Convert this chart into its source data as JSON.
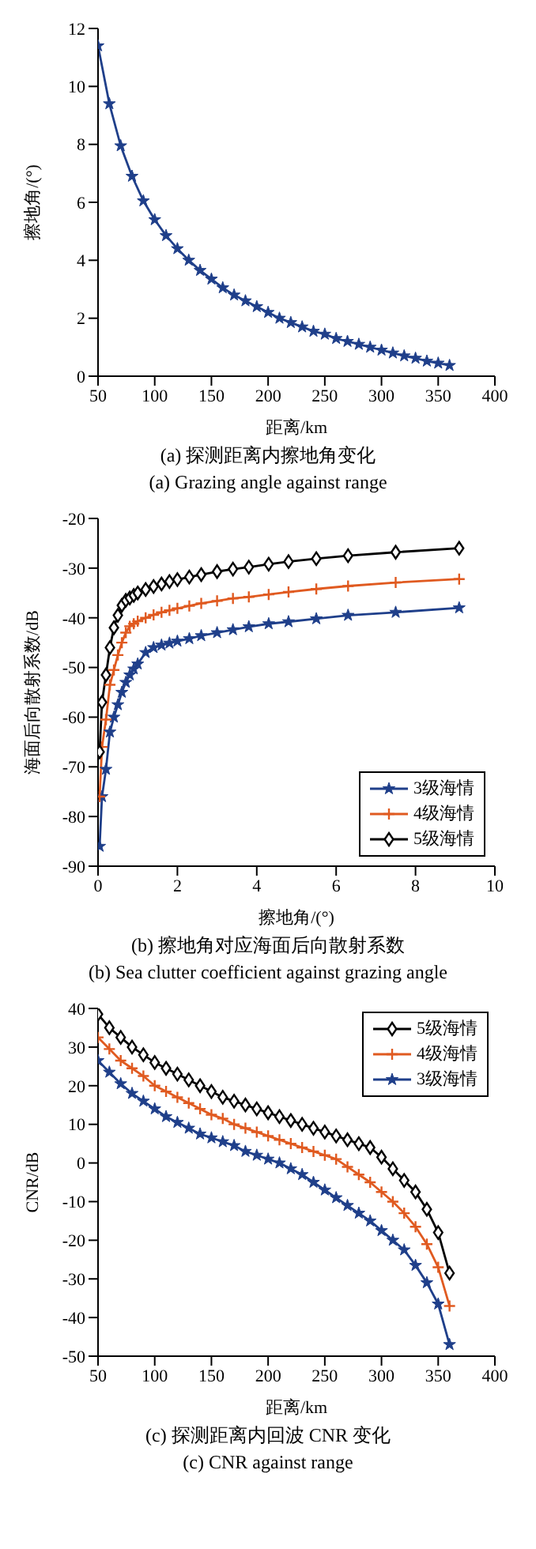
{
  "chart_data": [
    {
      "type": "line",
      "xlabel": "距离/km",
      "ylabel": "擦地角/(°)",
      "annotations": [
        "(a) 探测距离内擦地角变化",
        "(a) Grazing angle against range"
      ],
      "x": [
        50,
        60,
        70,
        80,
        90,
        100,
        110,
        120,
        130,
        140,
        150,
        160,
        170,
        180,
        190,
        200,
        210,
        220,
        230,
        240,
        250,
        260,
        270,
        280,
        290,
        300,
        310,
        320,
        330,
        340,
        350,
        360
      ],
      "xlim": [
        50,
        400
      ],
      "xticks": [
        50,
        100,
        150,
        200,
        250,
        300,
        350,
        400
      ],
      "ylim": [
        0,
        12
      ],
      "yticks": [
        0,
        2,
        4,
        6,
        8,
        10,
        12
      ],
      "grid": false,
      "legend": false,
      "marker": "star",
      "series": [
        {
          "color": "#1f3f8a",
          "values": [
            11.4,
            9.4,
            7.95,
            6.9,
            6.05,
            5.4,
            4.85,
            4.4,
            4.0,
            3.65,
            3.35,
            3.05,
            2.8,
            2.6,
            2.4,
            2.2,
            2.0,
            1.85,
            1.7,
            1.55,
            1.45,
            1.3,
            1.2,
            1.1,
            1.0,
            0.9,
            0.8,
            0.7,
            0.62,
            0.52,
            0.45,
            0.37
          ]
        }
      ]
    },
    {
      "type": "line",
      "xlabel": "擦地角/(°)",
      "ylabel": "海面后向散射系数/dB",
      "annotations": [
        "(b) 擦地角对应海面后向散射系数",
        "(b) Sea clutter coefficient against grazing angle"
      ],
      "x": [
        0.04,
        0.1,
        0.2,
        0.3,
        0.4,
        0.5,
        0.6,
        0.7,
        0.8,
        0.9,
        1.0,
        1.2,
        1.4,
        1.6,
        1.8,
        2.0,
        2.3,
        2.6,
        3.0,
        3.4,
        3.8,
        4.3,
        4.8,
        5.5,
        6.3,
        7.5,
        9.1
      ],
      "xlim": [
        0,
        10
      ],
      "xticks": [
        0,
        2,
        4,
        6,
        8,
        10
      ],
      "ylim": [
        -90,
        -20
      ],
      "yticks": [
        -90,
        -80,
        -70,
        -60,
        -50,
        -40,
        -30,
        -20
      ],
      "grid": false,
      "legend": "bottom right",
      "series": [
        {
          "name": "3级海情",
          "color": "#1f3f8a",
          "marker": "star",
          "values": [
            -86,
            -76,
            -70.5,
            -63,
            -60,
            -57.5,
            -55,
            -53,
            -51.5,
            -50.3,
            -49.3,
            -47,
            -46,
            -45.5,
            -45.1,
            -44.7,
            -44.2,
            -43.6,
            -43,
            -42.4,
            -41.8,
            -41.2,
            -40.8,
            -40.2,
            -39.5,
            -38.9,
            -38
          ]
        },
        {
          "name": "4级海情",
          "color": "#e05a20",
          "marker": "cross",
          "values": [
            -76,
            -66,
            -60.5,
            -53.5,
            -50.5,
            -47.5,
            -45,
            -43,
            -41.7,
            -41.2,
            -40.7,
            -40,
            -39.4,
            -38.9,
            -38.5,
            -38.1,
            -37.6,
            -37.1,
            -36.6,
            -36.1,
            -35.8,
            -35.3,
            -34.8,
            -34.2,
            -33.6,
            -32.9,
            -32.2
          ]
        },
        {
          "name": "5级海情",
          "color": "#000000",
          "marker": "diamond",
          "values": [
            -67,
            -57,
            -51.5,
            -46,
            -42,
            -39.5,
            -37.5,
            -36.5,
            -36,
            -35.5,
            -35,
            -34.3,
            -33.7,
            -33.2,
            -32.7,
            -32.3,
            -31.8,
            -31.3,
            -30.7,
            -30.2,
            -29.8,
            -29.2,
            -28.7,
            -28.1,
            -27.5,
            -26.8,
            -26
          ]
        }
      ]
    },
    {
      "type": "line",
      "xlabel": "距离/km",
      "ylabel": "CNR/dB",
      "annotations": [
        "(c) 探测距离内回波 CNR 变化",
        "(c) CNR against range"
      ],
      "x": [
        50,
        60,
        70,
        80,
        90,
        100,
        110,
        120,
        130,
        140,
        150,
        160,
        170,
        180,
        190,
        200,
        210,
        220,
        230,
        240,
        250,
        260,
        270,
        280,
        290,
        300,
        310,
        320,
        330,
        340,
        350,
        360
      ],
      "xlim": [
        50,
        400
      ],
      "xticks": [
        50,
        100,
        150,
        200,
        250,
        300,
        350,
        400
      ],
      "ylim": [
        -50,
        40
      ],
      "yticks": [
        -50,
        -40,
        -30,
        -20,
        -10,
        0,
        10,
        20,
        30,
        40
      ],
      "grid": false,
      "legend": "top right",
      "series": [
        {
          "name": "5级海情",
          "color": "#000000",
          "marker": "diamond",
          "values": [
            38.5,
            35,
            32.5,
            30,
            28,
            26,
            24.5,
            23,
            21.5,
            20,
            18.5,
            17,
            16,
            15,
            14,
            13,
            12,
            11,
            10,
            9,
            8,
            7,
            6,
            5,
            4,
            1.5,
            -1.5,
            -4.5,
            -7.5,
            -12,
            -18,
            -28.5
          ]
        },
        {
          "name": "4级海情",
          "color": "#e05a20",
          "marker": "cross",
          "values": [
            32.5,
            29.5,
            26.5,
            24.5,
            22.5,
            20,
            18.5,
            17,
            15.5,
            14,
            12.5,
            11.5,
            10,
            9,
            8,
            7,
            6,
            5,
            4,
            3,
            2,
            1,
            -1,
            -3,
            -5,
            -7.5,
            -10,
            -13,
            -16.5,
            -21,
            -27,
            -37
          ]
        },
        {
          "name": "3级海情",
          "color": "#1f3f8a",
          "marker": "star",
          "values": [
            26.5,
            23.5,
            20.5,
            18,
            16,
            14,
            12,
            10.5,
            9,
            7.5,
            6.5,
            5.5,
            4.5,
            3,
            2,
            1,
            0,
            -1.5,
            -3,
            -5,
            -7,
            -9,
            -11,
            -13,
            -15,
            -17.5,
            -20,
            -22.5,
            -26.5,
            -31,
            -36.5,
            -47
          ]
        }
      ]
    }
  ]
}
